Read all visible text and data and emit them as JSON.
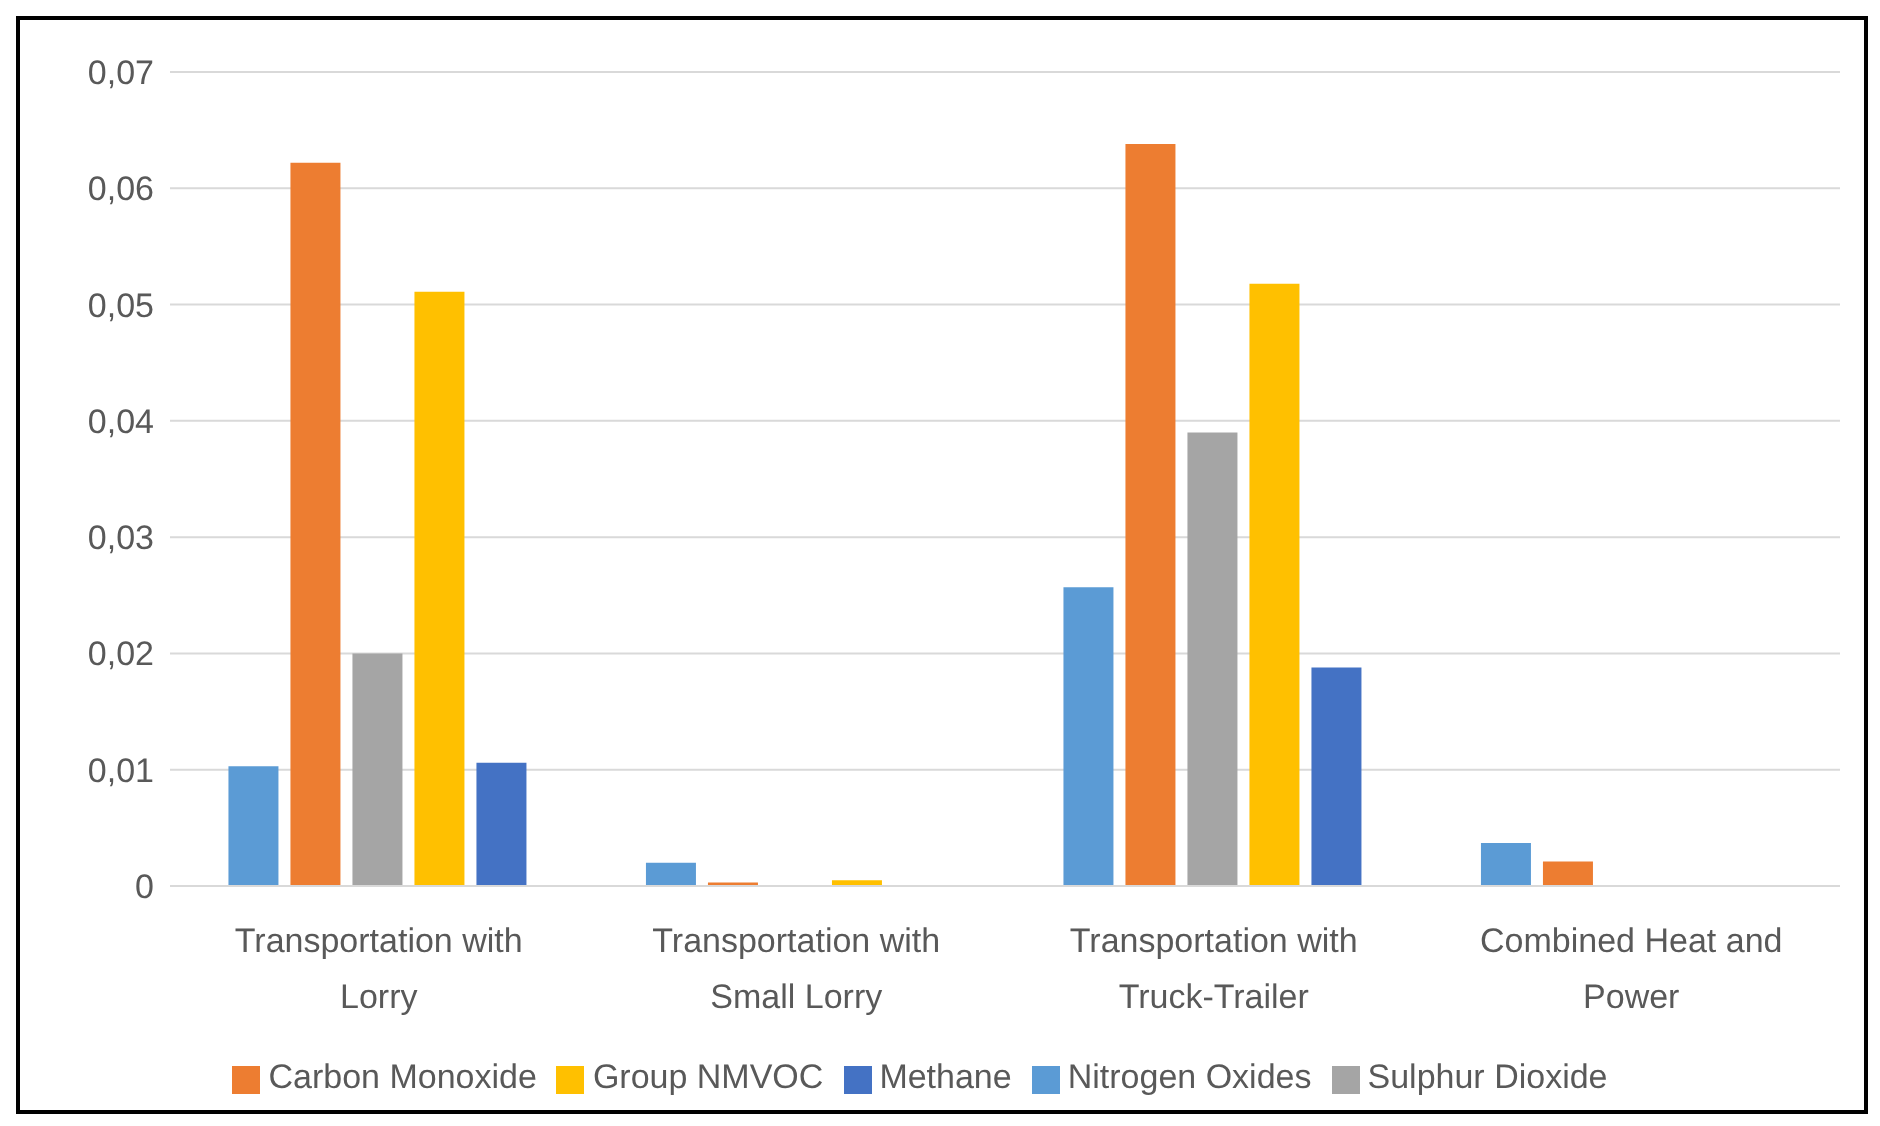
{
  "chart_data": {
    "type": "bar",
    "categories": [
      "Transportation with Lorry",
      "Transportation with Small Lorry",
      "Transportation with Truck-Trailer",
      "Combined Heat and Power"
    ],
    "series": [
      {
        "name": "Nitrogen Oxides",
        "color": "#5b9bd5",
        "values": [
          0.0103,
          0.002,
          0.0257,
          0.0037
        ]
      },
      {
        "name": "Carbon Monoxide",
        "color": "#ed7d31",
        "values": [
          0.0622,
          0.0003,
          0.0638,
          0.0021
        ]
      },
      {
        "name": "Sulphur Dioxide",
        "color": "#a5a5a5",
        "values": [
          0.02,
          0,
          0.039,
          0
        ]
      },
      {
        "name": "Group NMVOC",
        "color": "#ffc000",
        "values": [
          0.0511,
          0.0005,
          0.0518,
          0
        ]
      },
      {
        "name": "Methane",
        "color": "#4472c4",
        "values": [
          0.0106,
          0,
          0.0188,
          0
        ]
      }
    ],
    "ylim": [
      0,
      0.07
    ],
    "yticks": [
      {
        "value": 0,
        "label": "0"
      },
      {
        "value": 0.01,
        "label": "0,01"
      },
      {
        "value": 0.02,
        "label": "0,02"
      },
      {
        "value": 0.03,
        "label": "0,03"
      },
      {
        "value": 0.04,
        "label": "0,04"
      },
      {
        "value": 0.05,
        "label": "0,05"
      },
      {
        "value": 0.06,
        "label": "0,06"
      },
      {
        "value": 0.07,
        "label": "0,07"
      }
    ],
    "grid": "y",
    "legend": "bottom"
  }
}
